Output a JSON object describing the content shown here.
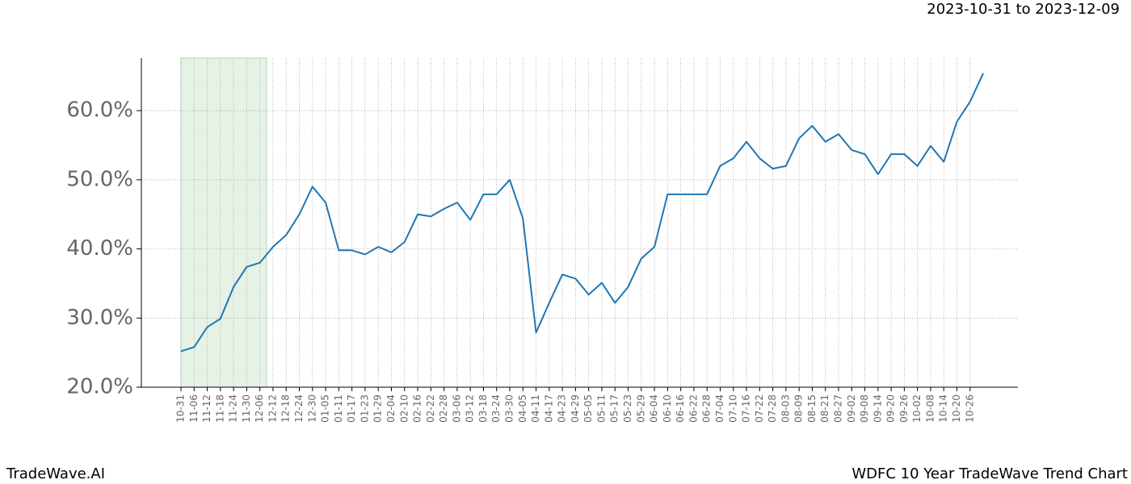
{
  "chart_data": {
    "type": "line",
    "title": "2023-10-31 to 2023-12-09",
    "brand": "TradeWave.AI",
    "caption": "WDFC 10 Year TradeWave Trend Chart",
    "categories": [
      "10-31",
      "11-06",
      "11-12",
      "11-18",
      "11-24",
      "11-30",
      "12-06",
      "12-12",
      "12-18",
      "12-24",
      "12-30",
      "01-05",
      "01-11",
      "01-17",
      "01-23",
      "01-29",
      "02-04",
      "02-10",
      "02-16",
      "02-22",
      "02-28",
      "03-06",
      "03-12",
      "03-18",
      "03-24",
      "03-30",
      "04-05",
      "04-11",
      "04-17",
      "04-23",
      "04-29",
      "05-05",
      "05-11",
      "05-17",
      "05-23",
      "05-29",
      "06-04",
      "06-10",
      "06-16",
      "06-22",
      "06-28",
      "07-04",
      "07-10",
      "07-16",
      "07-22",
      "07-28",
      "08-03",
      "08-09",
      "08-15",
      "08-21",
      "08-27",
      "09-02",
      "09-08",
      "09-14",
      "09-20",
      "09-26",
      "10-02",
      "10-08",
      "10-14",
      "10-20",
      "10-26",
      null
    ],
    "series": [
      {
        "color": "#1f77b4",
        "values": [
          25.2,
          25.8,
          28.7,
          29.9,
          34.5,
          37.4,
          38,
          40.3,
          42,
          45,
          49,
          46.7,
          39.8,
          39.8,
          39.2,
          40.3,
          39.5,
          41,
          45,
          44.7,
          45.8,
          46.7,
          44.2,
          47.9,
          47.9,
          50,
          44.4,
          27.9,
          32.2,
          36.3,
          35.7,
          33.4,
          35.1,
          32.2,
          34.5,
          38.6,
          40.3,
          47.9,
          47.9,
          47.9,
          47.9,
          52,
          53.1,
          55.5,
          53.1,
          51.6,
          52,
          56,
          57.8,
          55.5,
          56.6,
          54.3,
          53.7,
          50.8,
          53.7,
          53.7,
          52,
          54.9,
          52.6,
          58.4,
          61.3,
          65.4
        ]
      }
    ],
    "ylim": [
      20,
      67.6
    ],
    "yticks": [
      {
        "value": 20,
        "label": "20.0%"
      },
      {
        "value": 30,
        "label": "30.0%"
      },
      {
        "value": 40,
        "label": "40.0%"
      },
      {
        "value": 50,
        "label": "50.0%"
      },
      {
        "value": 60,
        "label": "60.0%"
      }
    ],
    "grid": true
  }
}
